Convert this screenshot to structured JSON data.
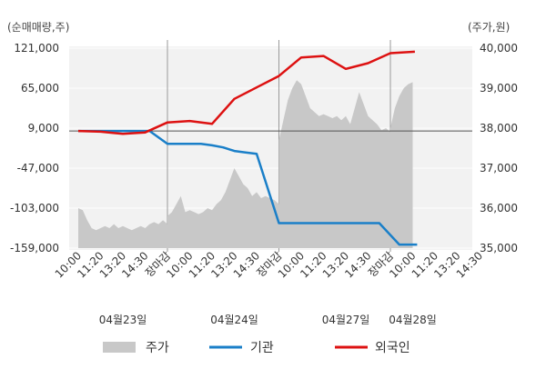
{
  "chart_data": {
    "type": "line",
    "left_axis_unit": "(순매매량,주)",
    "right_axis_unit": "(주가,원)",
    "left_ticks": [
      121000,
      65000,
      9000,
      -47000,
      -103000,
      -159000
    ],
    "left_tick_labels": [
      "121,000",
      "65,000",
      "9,000",
      "-47,000",
      "-103,000",
      "-159,000"
    ],
    "right_ticks": [
      40000,
      39000,
      38000,
      37000,
      36000,
      35000
    ],
    "right_tick_labels": [
      "40,000",
      "39,000",
      "38,000",
      "37,000",
      "36,000",
      "35,000"
    ],
    "left_range": [
      -159000,
      121000
    ],
    "right_range": [
      35000,
      40000
    ],
    "x_tick_labels": [
      {
        "slot": 0,
        "text": "10:00",
        "color": "#333333"
      },
      {
        "slot": 1,
        "text": "11:20",
        "color": "#333333"
      },
      {
        "slot": 2,
        "text": "13:20",
        "color": "#333333"
      },
      {
        "slot": 3,
        "text": "14:30",
        "color": "#333333"
      },
      {
        "slot": 4,
        "text": "장마감",
        "color": "#dd0000"
      },
      {
        "slot": 5,
        "text": "10:00",
        "color": "#333333"
      },
      {
        "slot": 6,
        "text": "11:20",
        "color": "#333333"
      },
      {
        "slot": 7,
        "text": "13:20",
        "color": "#333333"
      },
      {
        "slot": 8,
        "text": "14:30",
        "color": "#333333"
      },
      {
        "slot": 9,
        "text": "장마감",
        "color": "#dd0000"
      },
      {
        "slot": 10,
        "text": "10:00",
        "color": "#333333"
      },
      {
        "slot": 11,
        "text": "11:20",
        "color": "#333333"
      },
      {
        "slot": 12,
        "text": "13:20",
        "color": "#333333"
      },
      {
        "slot": 13,
        "text": "14:30",
        "color": "#333333"
      },
      {
        "slot": 14,
        "text": "장마감",
        "color": "#dd0000"
      },
      {
        "slot": 15,
        "text": "10:00",
        "color": "#333333"
      },
      {
        "slot": 16,
        "text": "11:20",
        "color": "#333333"
      },
      {
        "slot": 17,
        "text": "13:20",
        "color": "#333333"
      },
      {
        "slot": 18,
        "text": "14:30",
        "color": "#333333"
      }
    ],
    "date_labels": [
      {
        "slot": 2,
        "text": "04월23일"
      },
      {
        "slot": 7,
        "text": "04월24일"
      },
      {
        "slot": 12,
        "text": "04월27일"
      },
      {
        "slot": 15,
        "text": "04월28일"
      }
    ],
    "day_boundaries": [
      4,
      9,
      14
    ],
    "reference_level": 5000,
    "series": [
      {
        "name": "주가",
        "kind": "area",
        "axis": "right",
        "color": "#c8c8c8",
        "points": [
          [
            0,
            36000
          ],
          [
            0.2,
            35950
          ],
          [
            0.4,
            35700
          ],
          [
            0.6,
            35500
          ],
          [
            0.8,
            35450
          ],
          [
            1.0,
            35500
          ],
          [
            1.2,
            35550
          ],
          [
            1.4,
            35500
          ],
          [
            1.6,
            35600
          ],
          [
            1.8,
            35500
          ],
          [
            2.0,
            35550
          ],
          [
            2.2,
            35500
          ],
          [
            2.4,
            35450
          ],
          [
            2.6,
            35500
          ],
          [
            2.8,
            35550
          ],
          [
            3.0,
            35500
          ],
          [
            3.2,
            35600
          ],
          [
            3.4,
            35650
          ],
          [
            3.6,
            35600
          ],
          [
            3.8,
            35700
          ],
          [
            4.0,
            35600
          ],
          [
            4.0,
            35800
          ],
          [
            4.2,
            35900
          ],
          [
            4.4,
            36100
          ],
          [
            4.6,
            36300
          ],
          [
            4.8,
            35900
          ],
          [
            5.0,
            35950
          ],
          [
            5.2,
            35900
          ],
          [
            5.4,
            35850
          ],
          [
            5.6,
            35900
          ],
          [
            5.8,
            36000
          ],
          [
            6.0,
            35950
          ],
          [
            6.2,
            36100
          ],
          [
            6.4,
            36200
          ],
          [
            6.6,
            36400
          ],
          [
            6.8,
            36700
          ],
          [
            7.0,
            37000
          ],
          [
            7.2,
            36800
          ],
          [
            7.4,
            36600
          ],
          [
            7.6,
            36500
          ],
          [
            7.8,
            36300
          ],
          [
            8.0,
            36400
          ],
          [
            8.2,
            36250
          ],
          [
            8.4,
            36300
          ],
          [
            8.6,
            36250
          ],
          [
            8.8,
            36200
          ],
          [
            9.0,
            36100
          ],
          [
            9.0,
            37700
          ],
          [
            9.2,
            38200
          ],
          [
            9.4,
            38700
          ],
          [
            9.6,
            39000
          ],
          [
            9.8,
            39200
          ],
          [
            10.0,
            39100
          ],
          [
            10.2,
            38800
          ],
          [
            10.4,
            38500
          ],
          [
            10.6,
            38400
          ],
          [
            10.8,
            38300
          ],
          [
            11.0,
            38350
          ],
          [
            11.2,
            38300
          ],
          [
            11.4,
            38250
          ],
          [
            11.6,
            38300
          ],
          [
            11.8,
            38200
          ],
          [
            12.0,
            38300
          ],
          [
            12.2,
            38100
          ],
          [
            12.4,
            38500
          ],
          [
            12.6,
            38900
          ],
          [
            12.8,
            38600
          ],
          [
            13.0,
            38300
          ],
          [
            13.2,
            38200
          ],
          [
            13.4,
            38100
          ],
          [
            13.6,
            37950
          ],
          [
            13.8,
            38000
          ],
          [
            14.0,
            37900
          ],
          [
            14.0,
            38000
          ],
          [
            14.2,
            38500
          ],
          [
            14.4,
            38800
          ],
          [
            14.6,
            39000
          ],
          [
            14.8,
            39100
          ],
          [
            15.0,
            39150
          ]
        ]
      },
      {
        "name": "기관",
        "kind": "line",
        "axis": "left",
        "color": "#1a7fc8",
        "points": [
          [
            0,
            5000
          ],
          [
            1,
            5000
          ],
          [
            2,
            5000
          ],
          [
            3,
            5000
          ],
          [
            3.2,
            5000
          ],
          [
            4,
            -13000
          ],
          [
            5,
            -13000
          ],
          [
            5.5,
            -13000
          ],
          [
            6,
            -15000
          ],
          [
            6.5,
            -18000
          ],
          [
            7,
            -23000
          ],
          [
            7.5,
            -25000
          ],
          [
            8,
            -27000
          ],
          [
            9,
            -124000
          ],
          [
            10,
            -124000
          ],
          [
            11,
            -124000
          ],
          [
            12,
            -124000
          ],
          [
            13,
            -124000
          ],
          [
            13.5,
            -124000
          ],
          [
            14.4,
            -154000
          ],
          [
            15.2,
            -154000
          ]
        ]
      },
      {
        "name": "외국인",
        "kind": "line",
        "axis": "left",
        "color": "#dd1111",
        "points": [
          [
            0,
            5000
          ],
          [
            1,
            4000
          ],
          [
            2,
            1000
          ],
          [
            3,
            3000
          ],
          [
            4,
            17000
          ],
          [
            5,
            19000
          ],
          [
            6,
            15000
          ],
          [
            7,
            50000
          ],
          [
            8,
            66000
          ],
          [
            9,
            82000
          ],
          [
            10,
            108000
          ],
          [
            11,
            110000
          ],
          [
            12,
            92000
          ],
          [
            13,
            100000
          ],
          [
            14,
            114000
          ],
          [
            15.1,
            116000
          ]
        ]
      }
    ],
    "legend_position": "bottom"
  }
}
